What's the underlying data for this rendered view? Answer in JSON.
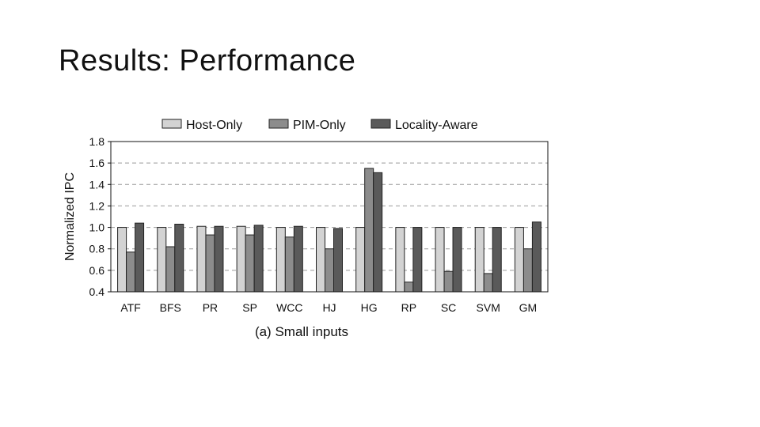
{
  "slide": {
    "title": "Results: Performance"
  },
  "chart_data": {
    "type": "bar",
    "title": "",
    "caption": "(a) Small inputs",
    "xlabel": "",
    "ylabel": "Normalized IPC",
    "ylim": [
      0.4,
      1.8
    ],
    "yticks": [
      "0.4",
      "0.6",
      "0.8",
      "1.0",
      "1.2",
      "1.4",
      "1.6",
      "1.8"
    ],
    "grid": "horizontal-dashed",
    "legend_position": "top",
    "categories": [
      "ATF",
      "BFS",
      "PR",
      "SP",
      "WCC",
      "HJ",
      "HG",
      "RP",
      "SC",
      "SVM",
      "GM"
    ],
    "series": [
      {
        "name": "Host-Only",
        "color": "#d3d3d3",
        "values": [
          1.0,
          1.0,
          1.01,
          1.01,
          1.0,
          1.0,
          1.0,
          1.0,
          1.0,
          1.0,
          1.0
        ]
      },
      {
        "name": "PIM-Only",
        "color": "#8c8c8c",
        "values": [
          0.77,
          0.82,
          0.93,
          0.93,
          0.91,
          0.8,
          1.55,
          0.49,
          0.59,
          0.57,
          0.8
        ]
      },
      {
        "name": "Locality-Aware",
        "color": "#5a5a5a",
        "values": [
          1.04,
          1.03,
          1.01,
          1.02,
          1.01,
          0.99,
          1.51,
          1.0,
          1.0,
          1.0,
          1.05
        ]
      }
    ]
  }
}
